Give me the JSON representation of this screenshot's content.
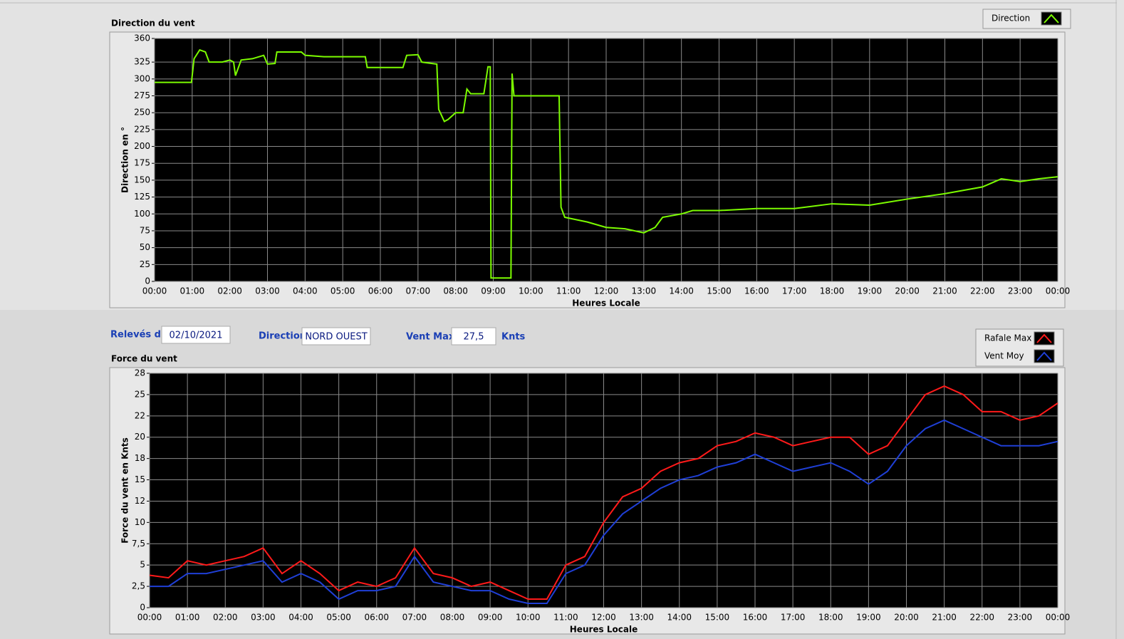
{
  "form": {
    "date_label": "Relevés du",
    "date": "02/10/2021",
    "direction_label": "Direction",
    "direction": "NORD OUEST",
    "vent_label": "Vent Max",
    "vent_max": "27,5",
    "unit": "Knts"
  },
  "chart_data": [
    {
      "type": "line",
      "title": "Direction du vent",
      "x_label": "Heures Locale",
      "y_label": "Direction en °",
      "xlim": [
        0,
        24
      ],
      "ylim": [
        0,
        360
      ],
      "grid": true,
      "xticks": [
        {
          "value": 0,
          "label": "00:00"
        },
        {
          "value": 1,
          "label": "01:00"
        },
        {
          "value": 2,
          "label": "02:00"
        },
        {
          "value": 3,
          "label": "03:00"
        },
        {
          "value": 4,
          "label": "04:00"
        },
        {
          "value": 5,
          "label": "05:00"
        },
        {
          "value": 6,
          "label": "06:00"
        },
        {
          "value": 7,
          "label": "07:00"
        },
        {
          "value": 8,
          "label": "08:00"
        },
        {
          "value": 9,
          "label": "09:00"
        },
        {
          "value": 10,
          "label": "10:00"
        },
        {
          "value": 11,
          "label": "11:00"
        },
        {
          "value": 12,
          "label": "12:00"
        },
        {
          "value": 13,
          "label": "13:00"
        },
        {
          "value": 14,
          "label": "14:00"
        },
        {
          "value": 15,
          "label": "15:00"
        },
        {
          "value": 16,
          "label": "16:00"
        },
        {
          "value": 17,
          "label": "17:00"
        },
        {
          "value": 18,
          "label": "18:00"
        },
        {
          "value": 19,
          "label": "19:00"
        },
        {
          "value": 20,
          "label": "20:00"
        },
        {
          "value": 21,
          "label": "21:00"
        },
        {
          "value": 22,
          "label": "22:00"
        },
        {
          "value": 23,
          "label": "23:00"
        },
        {
          "value": 24,
          "label": "00:00"
        }
      ],
      "yticks": [
        0,
        25,
        50,
        75,
        100,
        125,
        150,
        175,
        200,
        225,
        250,
        275,
        300,
        325,
        360
      ],
      "x": [
        0,
        0.98,
        1.05,
        1.2,
        1.35,
        1.45,
        1.8,
        2.0,
        2.1,
        2.15,
        2.3,
        2.6,
        2.9,
        3.0,
        3.2,
        3.25,
        3.5,
        3.9,
        4.0,
        4.5,
        5.6,
        5.65,
        6.6,
        6.7,
        7.0,
        7.1,
        7.5,
        7.55,
        7.7,
        7.8,
        8.0,
        8.2,
        8.3,
        8.4,
        8.75,
        8.86,
        8.92,
        8.94,
        9.47,
        9.5,
        9.55,
        10.0,
        10.75,
        10.8,
        10.9,
        11.5,
        12.0,
        12.5,
        13.0,
        13.3,
        13.5,
        14.0,
        14.3,
        15.0,
        16.0,
        17.0,
        18.0,
        19.0,
        20.0,
        21.0,
        22.0,
        22.5,
        23.0,
        23.5,
        24.0
      ],
      "series": [
        {
          "name": "Direction",
          "color": "#7cfc00",
          "values": [
            295,
            295,
            330,
            343,
            340,
            325,
            325,
            328,
            325,
            305,
            328,
            330,
            335,
            322,
            323,
            340,
            340,
            340,
            335,
            333,
            333,
            317,
            317,
            335,
            336,
            325,
            322,
            255,
            237,
            240,
            250,
            250,
            285,
            278,
            278,
            318,
            318,
            5,
            5,
            308,
            275,
            275,
            275,
            110,
            95,
            88,
            80,
            78,
            72,
            80,
            95,
            100,
            105,
            105,
            108,
            108,
            115,
            113,
            122,
            130,
            140,
            152,
            148,
            152,
            155
          ]
        }
      ]
    },
    {
      "type": "line",
      "title": "Force du vent",
      "x_label": "Heures Locale",
      "y_label": "Force du vent en Knts",
      "xlim": [
        0,
        24
      ],
      "ylim": [
        0,
        27.5
      ],
      "grid": true,
      "xticks": [
        {
          "value": 0,
          "label": "00:00"
        },
        {
          "value": 1,
          "label": "01:00"
        },
        {
          "value": 2,
          "label": "02:00"
        },
        {
          "value": 3,
          "label": "03:00"
        },
        {
          "value": 4,
          "label": "04:00"
        },
        {
          "value": 5,
          "label": "05:00"
        },
        {
          "value": 6,
          "label": "06:00"
        },
        {
          "value": 7,
          "label": "07:00"
        },
        {
          "value": 8,
          "label": "08:00"
        },
        {
          "value": 9,
          "label": "09:00"
        },
        {
          "value": 10,
          "label": "10:00"
        },
        {
          "value": 11,
          "label": "11:00"
        },
        {
          "value": 12,
          "label": "12:00"
        },
        {
          "value": 13,
          "label": "13:00"
        },
        {
          "value": 14,
          "label": "14:00"
        },
        {
          "value": 15,
          "label": "15:00"
        },
        {
          "value": 16,
          "label": "16:00"
        },
        {
          "value": 17,
          "label": "17:00"
        },
        {
          "value": 18,
          "label": "18:00"
        },
        {
          "value": 19,
          "label": "19:00"
        },
        {
          "value": 20,
          "label": "20:00"
        },
        {
          "value": 21,
          "label": "21:00"
        },
        {
          "value": 22,
          "label": "22:00"
        },
        {
          "value": 23,
          "label": "23:00"
        },
        {
          "value": 24,
          "label": "00:00"
        }
      ],
      "yticks": [
        0,
        {
          "value": 2.5,
          "label": "2,5"
        },
        5,
        {
          "value": 7.5,
          "label": "7,5"
        },
        10,
        {
          "value": 12.5,
          "label": "12"
        },
        15,
        {
          "value": 17.5,
          "label": "18"
        },
        20,
        {
          "value": 22.5,
          "label": "22"
        },
        25,
        {
          "value": 27.5,
          "label": "28"
        }
      ],
      "x": [
        0,
        0.5,
        1,
        1.5,
        2,
        2.5,
        3,
        3.5,
        4,
        4.5,
        5,
        5.5,
        6,
        6.5,
        7,
        7.5,
        8,
        8.5,
        9,
        9.5,
        10,
        10.5,
        11,
        11.5,
        12,
        12.5,
        13,
        13.5,
        14,
        14.5,
        15,
        15.5,
        16,
        16.5,
        17,
        17.5,
        18,
        18.5,
        19,
        19.5,
        20,
        20.5,
        21,
        21.5,
        22,
        22.5,
        23,
        23.5,
        24
      ],
      "series": [
        {
          "name": "Rafale Max",
          "color": "#ff1a1a",
          "values": [
            3.8,
            3.5,
            5.5,
            5,
            5.5,
            6,
            7,
            4,
            5.5,
            4,
            2,
            3,
            2.5,
            3.5,
            7,
            4,
            3.5,
            2.5,
            3,
            2,
            1,
            1,
            5,
            6,
            10,
            13,
            14,
            16,
            17,
            17.5,
            19,
            19.5,
            20.5,
            20,
            19,
            19.5,
            20,
            20,
            18,
            19,
            22,
            25,
            26,
            25,
            23,
            23,
            22,
            22.5,
            24
          ]
        },
        {
          "name": "Vent Moy",
          "color": "#1f3fd6",
          "values": [
            2.5,
            2.5,
            4,
            4,
            4.5,
            5,
            5.5,
            3,
            4,
            3,
            1,
            2,
            2,
            2.5,
            6,
            3,
            2.5,
            2,
            2,
            1,
            0.5,
            0.5,
            4,
            5,
            8.5,
            11,
            12.5,
            14,
            15,
            15.5,
            16.5,
            17,
            18,
            17,
            16,
            16.5,
            17,
            16,
            14.5,
            16,
            19,
            21,
            22,
            21,
            20,
            19,
            19,
            19,
            19.5
          ]
        }
      ]
    }
  ]
}
